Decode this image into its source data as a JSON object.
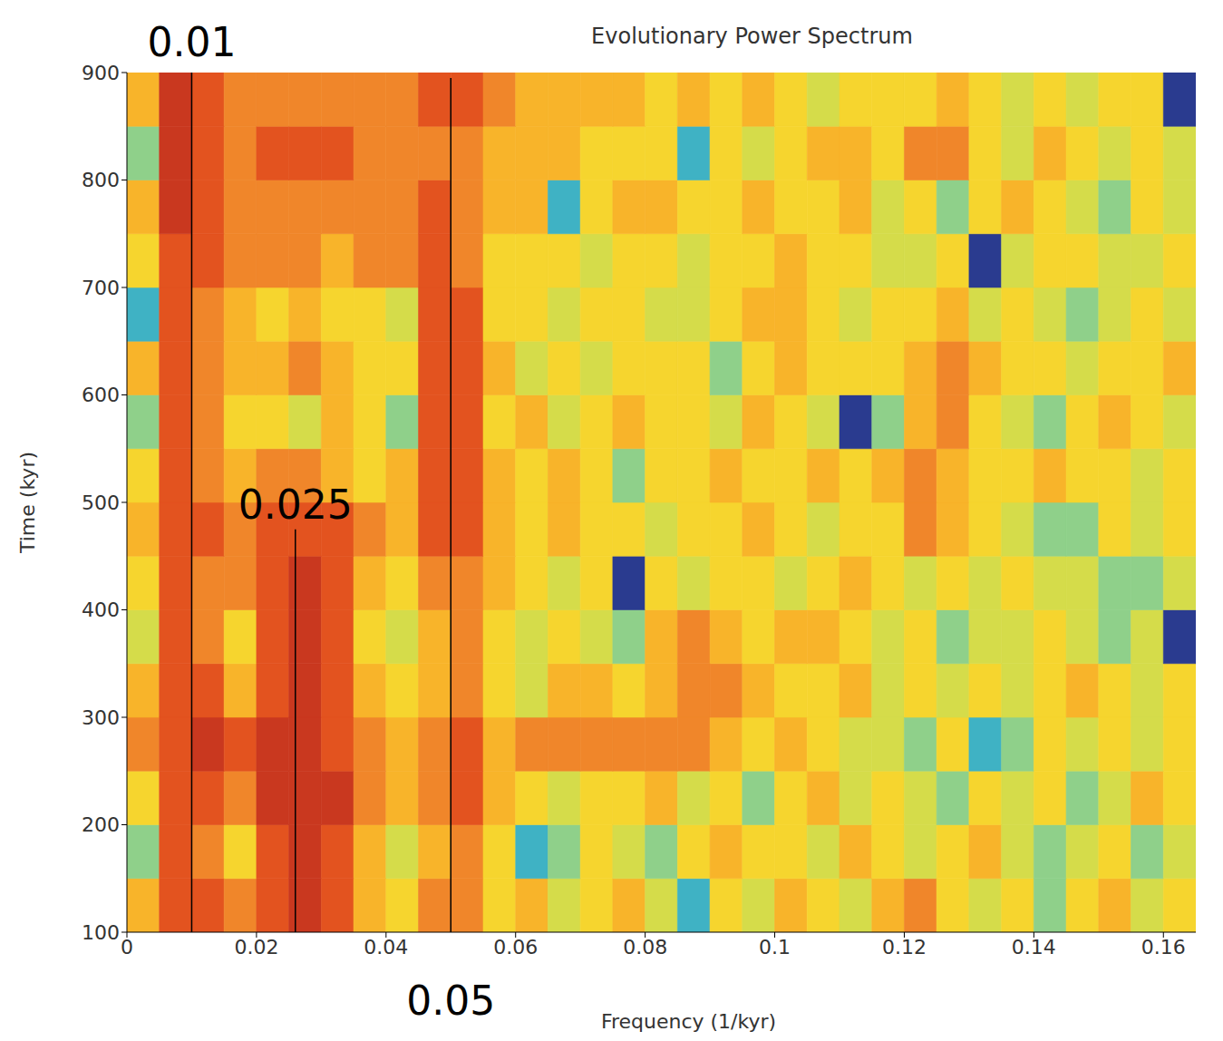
{
  "chart_data": {
    "type": "heatmap",
    "title": "Evolutionary Power Spectrum",
    "xlabel": "Frequency (1/kyr)",
    "ylabel": "Time (kyr)",
    "xlim": [
      0,
      0.165
    ],
    "xticks": [
      0,
      0.02,
      0.04,
      0.06,
      0.08,
      0.1,
      0.12,
      0.14,
      0.16
    ],
    "ylim": [
      100,
      900
    ],
    "yticks": [
      100,
      200,
      300,
      400,
      500,
      600,
      700,
      800,
      900
    ],
    "x": [
      0,
      0.005,
      0.01,
      0.015,
      0.02,
      0.025,
      0.03,
      0.035,
      0.04,
      0.045,
      0.05,
      0.055,
      0.06,
      0.065,
      0.07,
      0.075,
      0.08,
      0.085,
      0.09,
      0.095,
      0.1,
      0.105,
      0.11,
      0.115,
      0.12,
      0.125,
      0.13,
      0.135,
      0.14,
      0.145,
      0.15,
      0.155,
      0.16,
      0.165
    ],
    "y": [
      100,
      150,
      200,
      250,
      300,
      350,
      400,
      450,
      500,
      550,
      600,
      650,
      700,
      750,
      800,
      850,
      900
    ],
    "colors": [
      "#2a3b8f",
      "#3fb2c4",
      "#8fd08a",
      "#d5dc4a",
      "#f6d52e",
      "#f8b42a",
      "#f0862a",
      "#e3531f",
      "#c9381f"
    ],
    "z": [
      [
        5,
        7,
        7,
        6,
        7,
        8,
        7,
        5,
        4,
        6,
        6,
        4,
        5,
        3,
        4,
        5,
        3,
        1,
        4,
        3,
        5,
        4,
        3,
        5,
        6,
        4,
        3,
        4,
        2,
        4,
        5,
        3,
        4
      ],
      [
        2,
        7,
        6,
        4,
        7,
        8,
        7,
        5,
        3,
        5,
        6,
        4,
        1,
        2,
        4,
        3,
        2,
        4,
        5,
        4,
        4,
        3,
        5,
        4,
        3,
        4,
        5,
        3,
        2,
        3,
        4,
        2,
        3
      ],
      [
        4,
        7,
        7,
        6,
        8,
        8,
        8,
        6,
        5,
        6,
        7,
        5,
        4,
        3,
        4,
        4,
        5,
        3,
        4,
        2,
        4,
        5,
        3,
        4,
        3,
        2,
        4,
        3,
        4,
        2,
        3,
        5,
        4
      ],
      [
        6,
        7,
        8,
        7,
        8,
        8,
        7,
        6,
        5,
        6,
        7,
        5,
        6,
        6,
        6,
        6,
        6,
        6,
        5,
        4,
        5,
        4,
        3,
        3,
        2,
        4,
        1,
        2,
        4,
        3,
        4,
        3,
        4
      ],
      [
        5,
        7,
        7,
        5,
        7,
        8,
        7,
        5,
        4,
        5,
        6,
        4,
        3,
        5,
        5,
        4,
        5,
        6,
        6,
        5,
        4,
        4,
        5,
        3,
        4,
        3,
        4,
        3,
        4,
        5,
        4,
        3,
        4
      ],
      [
        3,
        7,
        6,
        4,
        7,
        8,
        7,
        4,
        3,
        5,
        6,
        4,
        3,
        4,
        3,
        2,
        5,
        6,
        5,
        4,
        5,
        5,
        4,
        3,
        4,
        2,
        3,
        3,
        4,
        3,
        2,
        3,
        0
      ],
      [
        4,
        7,
        6,
        6,
        7,
        8,
        7,
        5,
        4,
        6,
        6,
        5,
        4,
        3,
        4,
        0,
        4,
        3,
        4,
        4,
        3,
        4,
        5,
        4,
        3,
        4,
        3,
        4,
        3,
        3,
        2,
        2,
        3
      ],
      [
        5,
        7,
        7,
        6,
        7,
        7,
        7,
        6,
        5,
        7,
        7,
        5,
        4,
        5,
        4,
        4,
        3,
        4,
        4,
        5,
        4,
        3,
        4,
        4,
        6,
        5,
        4,
        3,
        2,
        2,
        4,
        3,
        4
      ],
      [
        4,
        7,
        6,
        5,
        6,
        6,
        5,
        4,
        5,
        7,
        7,
        5,
        4,
        5,
        4,
        2,
        4,
        4,
        5,
        4,
        4,
        5,
        4,
        5,
        6,
        5,
        4,
        4,
        5,
        4,
        4,
        3,
        4
      ],
      [
        2,
        7,
        6,
        4,
        4,
        3,
        5,
        4,
        2,
        7,
        7,
        4,
        5,
        3,
        4,
        5,
        4,
        4,
        3,
        5,
        4,
        3,
        0,
        2,
        5,
        6,
        4,
        3,
        2,
        4,
        5,
        4,
        3
      ],
      [
        5,
        7,
        6,
        5,
        5,
        6,
        5,
        4,
        4,
        7,
        7,
        5,
        3,
        4,
        3,
        4,
        4,
        4,
        2,
        4,
        5,
        4,
        4,
        4,
        5,
        6,
        5,
        4,
        4,
        3,
        4,
        4,
        5
      ],
      [
        1,
        7,
        6,
        5,
        4,
        5,
        4,
        4,
        3,
        7,
        7,
        4,
        4,
        3,
        4,
        4,
        3,
        3,
        4,
        5,
        5,
        4,
        3,
        4,
        4,
        5,
        3,
        4,
        3,
        2,
        3,
        4,
        3
      ],
      [
        4,
        7,
        7,
        6,
        6,
        6,
        5,
        6,
        6,
        7,
        6,
        4,
        4,
        4,
        3,
        4,
        4,
        3,
        4,
        4,
        5,
        4,
        4,
        3,
        3,
        4,
        0,
        3,
        4,
        4,
        3,
        3,
        4
      ],
      [
        5,
        8,
        7,
        6,
        6,
        6,
        6,
        6,
        6,
        7,
        6,
        5,
        5,
        1,
        4,
        5,
        5,
        4,
        4,
        5,
        4,
        4,
        5,
        3,
        4,
        2,
        4,
        5,
        4,
        3,
        2,
        4,
        3
      ],
      [
        2,
        8,
        7,
        6,
        7,
        7,
        7,
        6,
        6,
        6,
        6,
        5,
        5,
        5,
        4,
        4,
        4,
        1,
        4,
        3,
        4,
        5,
        5,
        4,
        6,
        6,
        4,
        3,
        5,
        4,
        3,
        4,
        3
      ],
      [
        5,
        8,
        7,
        6,
        6,
        6,
        6,
        6,
        6,
        7,
        7,
        6,
        5,
        5,
        5,
        5,
        4,
        5,
        4,
        5,
        4,
        3,
        4,
        4,
        4,
        5,
        4,
        3,
        4,
        3,
        4,
        4,
        0
      ]
    ],
    "annotations": [
      {
        "x": 0.01,
        "y": [
          100,
          900
        ],
        "label": "0.01"
      },
      {
        "x": 0.026,
        "y": [
          100,
          475
        ],
        "label": "0.025"
      },
      {
        "x": 0.05,
        "y": [
          100,
          895
        ],
        "label": "0.05"
      }
    ]
  }
}
